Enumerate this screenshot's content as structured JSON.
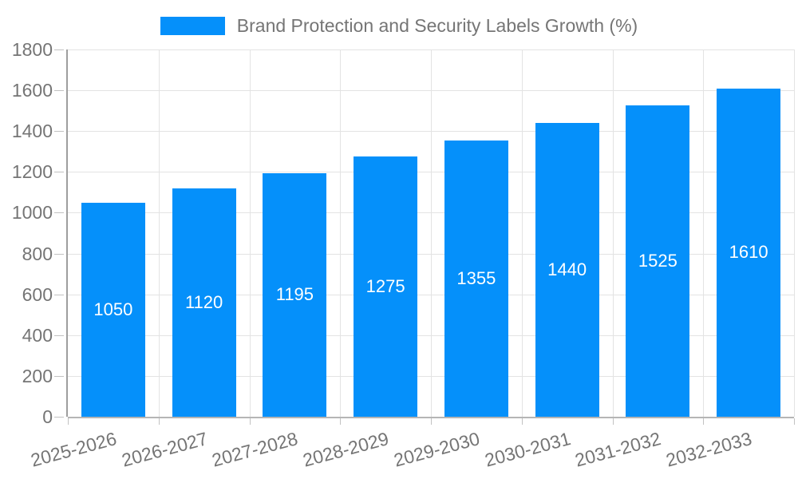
{
  "chart_data": {
    "type": "bar",
    "title": "Brand Protection and Security Labels Growth (%)",
    "categories": [
      "2025-2026",
      "2026-2027",
      "2027-2028",
      "2028-2029",
      "2029-2030",
      "2030-2031",
      "2031-2032",
      "2032-2033"
    ],
    "values": [
      1050,
      1120,
      1195,
      1275,
      1355,
      1440,
      1525,
      1610
    ],
    "bar_value_labels": [
      "1050",
      "1120",
      "1195",
      "1275",
      "1355",
      "1440",
      "1525",
      "1610"
    ],
    "xlabel": "",
    "ylabel": "",
    "ylim": [
      0,
      1800
    ],
    "ytick_step": 200,
    "yticks": [
      0,
      200,
      400,
      600,
      800,
      1000,
      1200,
      1400,
      1600,
      1800
    ],
    "grid": true,
    "legend_position": "top-center",
    "value_labels_position": "inside-center",
    "xtick_angle_deg": -15,
    "colors": {
      "bar": "#0590FA",
      "gridline": "#E3E3E3",
      "axis_line": "#B5B5B5",
      "y_axis_line": "#9E9E9E",
      "tick_mark": "#C2C2C2",
      "tick_label": "#757575",
      "value_label": "#FFFFFF",
      "background": "#FFFFFF"
    }
  }
}
